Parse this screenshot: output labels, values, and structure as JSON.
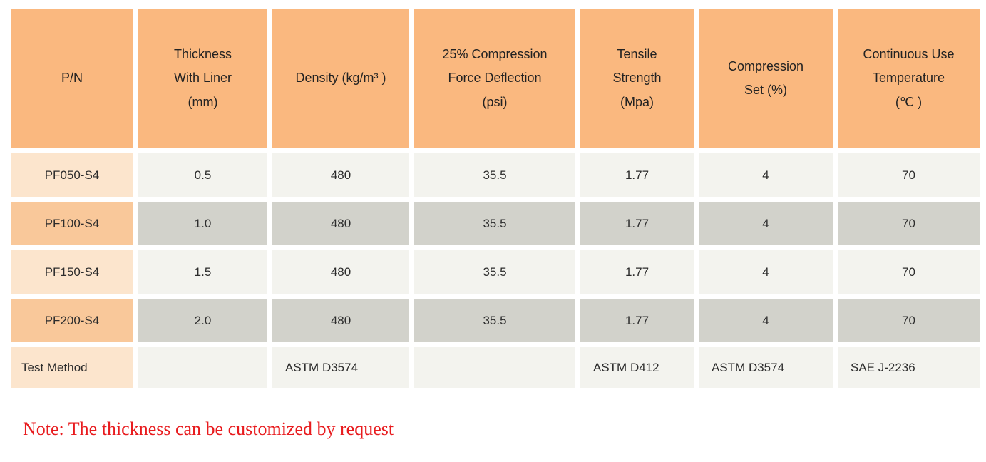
{
  "colors": {
    "header_orange": "#fab87f",
    "row_peach": "#fce5cd",
    "row_orange": "#f9c89a",
    "cell_light": "#f3f3ee",
    "cell_gray": "#d2d2cb",
    "text": "#2c2c2c",
    "note_red": "#e81b1e"
  },
  "table": {
    "columns": [
      {
        "label": "P/N"
      },
      {
        "label": "Thickness\nWith Liner\n(mm)"
      },
      {
        "label": "Density (kg/m³ )"
      },
      {
        "label": "25% Compression\nForce Deflection\n(psi)"
      },
      {
        "label": "Tensile\nStrength\n(Mpa)"
      },
      {
        "label": "Compression\nSet (%)"
      },
      {
        "label": "Continuous Use\nTemperature\n(℃ )"
      }
    ],
    "rows": [
      {
        "pn": "PF050-S4",
        "cells": [
          "0.5",
          "480",
          "35.5",
          "1.77",
          "4",
          "70"
        ]
      },
      {
        "pn": "PF100-S4",
        "cells": [
          "1.0",
          "480",
          "35.5",
          "1.77",
          "4",
          "70"
        ]
      },
      {
        "pn": "PF150-S4",
        "cells": [
          "1.5",
          "480",
          "35.5",
          "1.77",
          "4",
          "70"
        ]
      },
      {
        "pn": "PF200-S4",
        "cells": [
          "2.0",
          "480",
          "35.5",
          "1.77",
          "4",
          "70"
        ]
      },
      {
        "pn": "Test Method",
        "cells": [
          "",
          "ASTM D3574",
          "",
          "ASTM D412",
          "ASTM D3574",
          "SAE J-2236"
        ]
      }
    ]
  },
  "note": "Note: The thickness can be customized by request"
}
